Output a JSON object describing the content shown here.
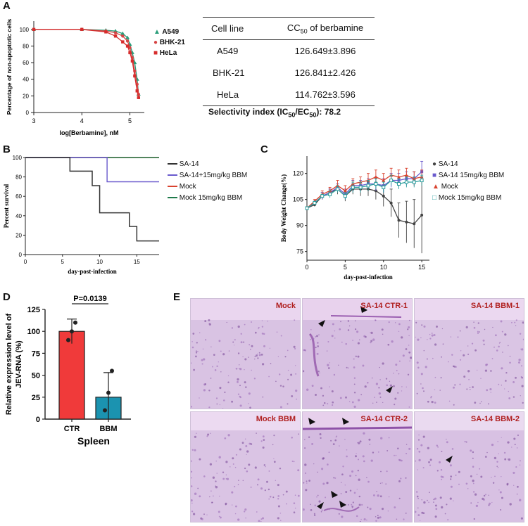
{
  "panel_labels": {
    "a": "A",
    "b": "B",
    "c": "C",
    "d": "D",
    "e": "E"
  },
  "panel_a": {
    "ylabel": "Percentage of non-apoptotic cells",
    "xlabel": "log[Berbamine], nM",
    "xticks": [
      "3",
      "4",
      "5"
    ],
    "yticks": [
      "0",
      "20",
      "40",
      "60",
      "80",
      "100"
    ],
    "legend": [
      {
        "name": "A549",
        "color": "#2a9d7a"
      },
      {
        "name": "BHK-21",
        "color": "#d64545"
      },
      {
        "name": "HeLa",
        "color": "#d62c2c"
      }
    ]
  },
  "table": {
    "headers": {
      "cell_line": "Cell line",
      "cc_prefix": "CC",
      "cc_sub": "50",
      "cc_suffix": " of berbamine"
    },
    "rows": [
      {
        "line": "A549",
        "value": "126.649±3.896"
      },
      {
        "line": "BHK-21",
        "value": "126.841±2.426"
      },
      {
        "line": "HeLa",
        "value": "114.762±3.596"
      }
    ],
    "selectivity": {
      "pre": "Selectivity index (IC",
      "sub1": "50",
      "mid": "/EC",
      "sub2": "50",
      "post": "): 78.2"
    }
  },
  "panel_b": {
    "ylabel": "Percent survival",
    "xlabel": "day-post-infection",
    "xticks": [
      "0",
      "5",
      "10",
      "15"
    ],
    "yticks": [
      "0",
      "20",
      "40",
      "60",
      "80",
      "100"
    ],
    "legend": [
      {
        "name": "SA-14",
        "color": "#333333"
      },
      {
        "name": "SA-14+15mg/kg BBM",
        "color": "#6a5acd"
      },
      {
        "name": "Mock",
        "color": "#d9432f"
      },
      {
        "name": "Mock 15mg/kg BBM",
        "color": "#1f7a4a"
      }
    ]
  },
  "panel_c": {
    "ylabel": "Body Weight Change(%)",
    "xlabel": "day-post-infection",
    "xticks": [
      "0",
      "5",
      "10",
      "15"
    ],
    "yticks": [
      "75",
      "90",
      "105",
      "120"
    ],
    "legend": [
      {
        "name": "SA-14",
        "color": "#444444"
      },
      {
        "name": "SA-14 15mg/kg BBM",
        "color": "#6a5acd"
      },
      {
        "name": "Mock",
        "color": "#d9432f"
      },
      {
        "name": "Mock 15mg/kg BBM",
        "color": "#2a9d9d"
      }
    ]
  },
  "panel_d": {
    "ylabel_1": "Relative expression level of",
    "ylabel_2": "JEV-RNA (%)",
    "xlabel": "Spleen",
    "pvalue": "P=0.0139",
    "yticks": [
      "0",
      "25",
      "50",
      "75",
      "100",
      "125"
    ]
  },
  "panel_e": {
    "tiles": [
      "Mock",
      "SA-14 CTR-1",
      "SA-14 BBM-1",
      "Mock BBM",
      "SA-14 CTR-2",
      "SA-14 BBM-2"
    ]
  },
  "chart_data": [
    {
      "type": "scatter",
      "title": "",
      "xlabel": "log[Berbamine], nM",
      "ylabel": "Percentage of non-apoptotic cells",
      "xlim": [
        3,
        5.3
      ],
      "ylim": [
        0,
        110
      ],
      "series": [
        {
          "name": "A549",
          "x": [
            3,
            4,
            4.5,
            4.7,
            4.85,
            4.95,
            5.0,
            5.05,
            5.1,
            5.15,
            5.18
          ],
          "y": [
            100,
            100,
            99,
            98,
            95,
            90,
            82,
            72,
            60,
            40,
            22
          ]
        },
        {
          "name": "BHK-21",
          "x": [
            3,
            4,
            4.5,
            4.7,
            4.85,
            4.95,
            5.0,
            5.05,
            5.1,
            5.15,
            5.18
          ],
          "y": [
            100,
            100,
            98,
            96,
            92,
            86,
            78,
            66,
            50,
            34,
            22
          ]
        },
        {
          "name": "HeLa",
          "x": [
            3,
            4,
            4.5,
            4.7,
            4.85,
            4.95,
            5.0,
            5.05,
            5.1,
            5.15,
            5.18
          ],
          "y": [
            100,
            100,
            97,
            92,
            85,
            80,
            72,
            62,
            44,
            26,
            18
          ]
        }
      ]
    },
    {
      "type": "line",
      "title": "",
      "xlabel": "day-post-infection",
      "ylabel": "Percent survival",
      "xlim": [
        0,
        18
      ],
      "ylim": [
        0,
        100
      ],
      "series": [
        {
          "name": "SA-14",
          "x": [
            0,
            6,
            6,
            9,
            9,
            10,
            10,
            14,
            14,
            15,
            15,
            18
          ],
          "y": [
            100,
            100,
            86,
            86,
            71,
            71,
            43,
            43,
            29,
            29,
            14,
            14
          ]
        },
        {
          "name": "SA-14+15mg/kg BBM",
          "x": [
            0,
            11,
            11,
            18
          ],
          "y": [
            100,
            100,
            75,
            75
          ]
        },
        {
          "name": "Mock",
          "x": [
            0,
            18
          ],
          "y": [
            100,
            100
          ]
        },
        {
          "name": "Mock 15mg/kg BBM",
          "x": [
            0,
            18
          ],
          "y": [
            100,
            100
          ]
        }
      ]
    },
    {
      "type": "line",
      "title": "",
      "xlabel": "day-post-infection",
      "ylabel": "Body Weight Change(%)",
      "xlim": [
        0,
        16
      ],
      "ylim": [
        70,
        130
      ],
      "series": [
        {
          "name": "SA-14",
          "x": [
            0,
            1,
            2,
            3,
            4,
            5,
            6,
            7,
            8,
            9,
            10,
            11,
            12,
            13,
            14,
            15
          ],
          "y": [
            100,
            102,
            107,
            109,
            111,
            107,
            111,
            111,
            111,
            110,
            107,
            103,
            93,
            92,
            91,
            96
          ]
        },
        {
          "name": "SA-14 15mg/kg BBM",
          "x": [
            0,
            1,
            2,
            3,
            4,
            5,
            6,
            7,
            8,
            9,
            10,
            11,
            12,
            13,
            14,
            15
          ],
          "y": [
            100,
            103,
            107,
            109,
            112,
            108,
            113,
            113,
            114,
            114,
            113,
            116,
            116,
            117,
            117,
            121
          ]
        },
        {
          "name": "Mock",
          "x": [
            0,
            1,
            2,
            3,
            4,
            5,
            6,
            7,
            8,
            9,
            10,
            11,
            12,
            13,
            14,
            15
          ],
          "y": [
            100,
            104,
            108,
            110,
            113,
            110,
            114,
            115,
            116,
            118,
            116,
            119,
            118,
            119,
            117,
            118
          ]
        },
        {
          "name": "Mock 15mg/kg BBM",
          "x": [
            0,
            1,
            2,
            3,
            4,
            5,
            6,
            7,
            8,
            9,
            10,
            11,
            12,
            13,
            14,
            15
          ],
          "y": [
            100,
            103,
            107,
            108,
            111,
            107,
            112,
            112,
            113,
            114,
            112,
            116,
            114,
            115,
            115,
            116
          ]
        }
      ]
    },
    {
      "type": "bar",
      "title": "",
      "xlabel": "Spleen",
      "ylabel": "Relative expression level of JEV-RNA (%)",
      "categories": [
        "CTR",
        "BBM"
      ],
      "values": [
        100,
        25
      ],
      "errors": [
        14,
        28
      ],
      "points": [
        [
          90,
          100,
          110
        ],
        [
          10,
          30,
          55
        ]
      ],
      "colors": [
        "#f03a3a",
        "#1b93b0"
      ],
      "ylim": [
        0,
        125
      ],
      "annotation": "P=0.0139"
    }
  ]
}
